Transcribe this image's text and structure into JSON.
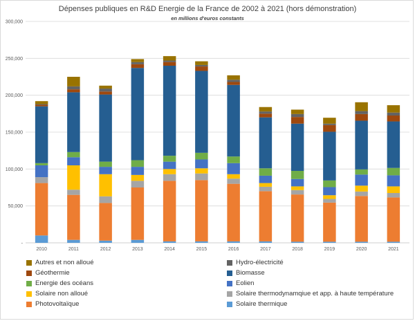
{
  "chart_data": {
    "type": "bar",
    "stacked": true,
    "title": "Dépenses publiques en R&D Energie de la France de 2002 à 2021 (hors démonstration)",
    "subtitle": "en millions d'euros constants",
    "categories": [
      "2010",
      "2011",
      "2012",
      "2013",
      "2014",
      "2015",
      "2016",
      "2017",
      "2018",
      "2019",
      "2020",
      "2021"
    ],
    "ylim": [
      0,
      300000
    ],
    "yticks": [
      "-",
      "50,000",
      "100,000",
      "150,000",
      "200,000",
      "250,000",
      "300,000"
    ],
    "ytick_values": [
      0,
      50000,
      100000,
      150000,
      200000,
      250000,
      300000
    ],
    "grid": true,
    "legend_position": "bottom",
    "series": [
      {
        "name": "Solaire thermique",
        "color": "#5b9bd5",
        "values": [
          10000,
          4000,
          3000,
          4000,
          2000,
          2000,
          2000,
          2000,
          1500,
          1500,
          1500,
          1500
        ]
      },
      {
        "name": "Photovoltaïque",
        "color": "#ed7d31",
        "values": [
          71000,
          61000,
          51000,
          71000,
          82000,
          83000,
          78000,
          68000,
          64000,
          53000,
          62000,
          60000
        ]
      },
      {
        "name": "Solaire thermodynamqiue et app. à haute température",
        "color": "#a5a5a5",
        "values": [
          8000,
          7000,
          9000,
          9000,
          9000,
          9000,
          7000,
          6000,
          6000,
          5000,
          6000,
          6000
        ]
      },
      {
        "name": "Solaire non alloué",
        "color": "#ffc000",
        "values": [
          0,
          33000,
          30000,
          8000,
          7000,
          7000,
          6000,
          5000,
          5000,
          5000,
          8000,
          9000
        ]
      },
      {
        "name": "Eolien",
        "color": "#4472c4",
        "values": [
          16000,
          11000,
          10000,
          11000,
          10000,
          12000,
          15000,
          10000,
          10000,
          11000,
          15000,
          15000
        ]
      },
      {
        "name": "Energie des océans",
        "color": "#70ad47",
        "values": [
          3000,
          7000,
          7000,
          9000,
          8000,
          9000,
          9000,
          10000,
          11000,
          9000,
          7000,
          10000
        ]
      },
      {
        "name": "Biomasse",
        "color": "#255e91",
        "values": [
          77000,
          81000,
          91000,
          125000,
          122000,
          111000,
          97000,
          69000,
          64000,
          66000,
          66000,
          63000
        ]
      },
      {
        "name": "Géothermie",
        "color": "#9e480e",
        "values": [
          2000,
          4000,
          4000,
          5000,
          5000,
          6000,
          4000,
          5000,
          9000,
          9000,
          9000,
          8000
        ]
      },
      {
        "name": "Hydro-électricité",
        "color": "#636363",
        "values": [
          1000,
          4000,
          4000,
          3000,
          2000,
          2000,
          3000,
          3000,
          4000,
          2000,
          4000,
          4000
        ]
      },
      {
        "name": "Autres et non alloué",
        "color": "#997300",
        "values": [
          4000,
          13000,
          4000,
          4000,
          6000,
          5000,
          6000,
          6000,
          6000,
          8000,
          12000,
          10000
        ]
      }
    ],
    "legend_order": [
      "Autres et non alloué",
      "Hydro-électricité",
      "Géothermie",
      "Biomasse",
      "Energie des océans",
      "Eolien",
      "Solaire non alloué",
      "Solaire thermodynamqiue et app. à haute température",
      "Photovoltaïque",
      "Solaire thermique"
    ]
  }
}
